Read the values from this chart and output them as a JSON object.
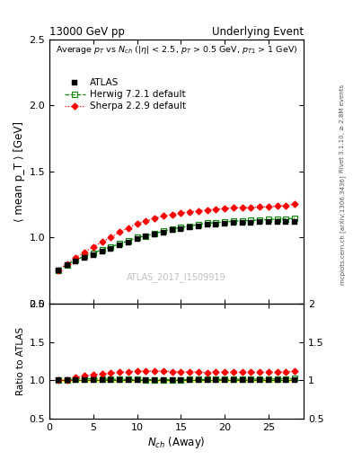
{
  "title_left": "13000 GeV pp",
  "title_right": "Underlying Event",
  "right_label_top": "Rivet 3.1.10, ≥ 2.8M events",
  "right_label_bottom": "mcplots.cern.ch [arXiv:1306.3436]",
  "watermark": "ATLAS_2017_I1509919",
  "subtitle": "Average p_T vs N_{ch} (|\\eta| < 2.5, p_T > 0.5 GeV, p_{T1} > 1 GeV)",
  "ylabel_main": "⟨ mean p_T ⟩ [GeV]",
  "ylabel_ratio": "Ratio to ATLAS",
  "xlabel": "N_{ch} (Away)",
  "ylim_main": [
    0.5,
    2.5
  ],
  "ylim_ratio": [
    0.5,
    2.0
  ],
  "atlas_x": [
    1,
    2,
    3,
    4,
    5,
    6,
    7,
    8,
    9,
    10,
    11,
    12,
    13,
    14,
    15,
    16,
    17,
    18,
    19,
    20,
    21,
    22,
    23,
    24,
    25,
    26,
    27,
    28
  ],
  "atlas_y": [
    0.753,
    0.793,
    0.816,
    0.843,
    0.866,
    0.893,
    0.915,
    0.942,
    0.964,
    0.99,
    1.006,
    1.023,
    1.039,
    1.055,
    1.066,
    1.077,
    1.087,
    1.097,
    1.099,
    1.105,
    1.108,
    1.11,
    1.113,
    1.115,
    1.118,
    1.119,
    1.12,
    1.121
  ],
  "herwig_x": [
    1,
    2,
    3,
    4,
    5,
    6,
    7,
    8,
    9,
    10,
    11,
    12,
    13,
    14,
    15,
    16,
    17,
    18,
    19,
    20,
    21,
    22,
    23,
    24,
    25,
    26,
    27,
    28
  ],
  "herwig_y": [
    0.754,
    0.793,
    0.83,
    0.858,
    0.882,
    0.907,
    0.928,
    0.952,
    0.974,
    1.0,
    1.012,
    1.03,
    1.048,
    1.063,
    1.075,
    1.087,
    1.098,
    1.108,
    1.111,
    1.118,
    1.122,
    1.125,
    1.128,
    1.132,
    1.136,
    1.138,
    1.14,
    1.145
  ],
  "sherpa_x": [
    1,
    2,
    3,
    4,
    5,
    6,
    7,
    8,
    9,
    10,
    11,
    12,
    13,
    14,
    15,
    16,
    17,
    18,
    19,
    20,
    21,
    22,
    23,
    24,
    25,
    26,
    27,
    28
  ],
  "sherpa_y": [
    0.754,
    0.8,
    0.848,
    0.89,
    0.928,
    0.966,
    1.001,
    1.04,
    1.072,
    1.105,
    1.123,
    1.148,
    1.162,
    1.174,
    1.185,
    1.194,
    1.202,
    1.209,
    1.215,
    1.22,
    1.223,
    1.225,
    1.228,
    1.23,
    1.233,
    1.237,
    1.24,
    1.255
  ],
  "atlas_color": "black",
  "herwig_color": "#008800",
  "sherpa_color": "red",
  "xlim": [
    0,
    29
  ],
  "xticks": [
    0,
    5,
    10,
    15,
    20,
    25
  ],
  "yticks_main": [
    0.5,
    1.0,
    1.5,
    2.0,
    2.5
  ],
  "yticks_ratio": [
    0.5,
    1.0,
    1.5,
    2.0
  ]
}
